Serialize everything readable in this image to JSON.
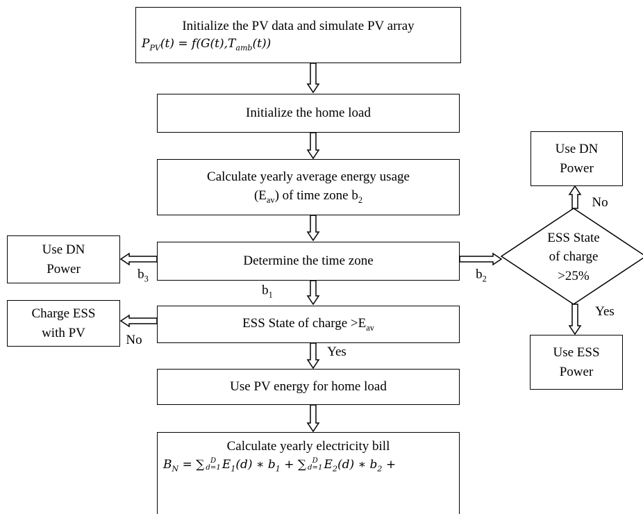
{
  "nodes": [
    {
      "lines": [
        [
          "Initialize the PV data and simulate PV array"
        ],
        [
          "P",
          {
            "sub": "PV"
          },
          "(t) = f(G(t),T",
          {
            "sub": "amb"
          },
          "(t))"
        ]
      ]
    },
    {
      "lines": [
        [
          "Initialize the home load"
        ]
      ]
    },
    {
      "lines": [
        [
          "Calculate yearly average energy usage"
        ],
        [
          "(E",
          {
            "sub": "av"
          },
          ") of time zone b",
          {
            "sub": "2"
          }
        ]
      ]
    },
    {
      "lines": [
        [
          "Determine the time zone"
        ]
      ]
    },
    {
      "lines": [
        [
          "Use DN"
        ],
        [
          "Power"
        ]
      ]
    },
    {
      "lines": [
        [
          "ESS State"
        ],
        [
          "of charge"
        ],
        [
          ">25%"
        ]
      ]
    },
    {
      "lines": [
        [
          "Use DN"
        ],
        [
          "Power"
        ]
      ]
    },
    {
      "lines": [
        [
          "Use ESS"
        ],
        [
          "Power"
        ]
      ]
    },
    {
      "lines": [
        [
          "ESS State of charge >E",
          {
            "sub": "av"
          }
        ]
      ]
    },
    {
      "lines": [
        [
          "Charge ESS"
        ],
        [
          "with PV"
        ]
      ]
    },
    {
      "lines": [
        [
          "Use PV energy for home load"
        ]
      ]
    },
    {
      "lines": [
        [
          "Calculate yearly electricity bill"
        ],
        [
          "B",
          {
            "sub": "N"
          },
          " = ∑",
          {
            "sup": "D",
            "sub": "d=1"
          },
          "E",
          {
            "sub": "1"
          },
          "(d) ∗ b",
          {
            "sub": "1"
          },
          " + ∑",
          {
            "sup": "D",
            "sub": "d=1"
          },
          "E",
          {
            "sub": "2"
          },
          "(d) ∗ b",
          {
            "sub": "2"
          },
          " +"
        ]
      ]
    }
  ],
  "edge_labels": [
    [
      "b",
      {
        "sub": "3"
      }
    ],
    [
      "b",
      {
        "sub": "2"
      }
    ],
    [
      "b",
      {
        "sub": "1"
      }
    ],
    [
      "No"
    ],
    [
      "Yes"
    ],
    [
      "No"
    ],
    [
      "Yes"
    ]
  ]
}
